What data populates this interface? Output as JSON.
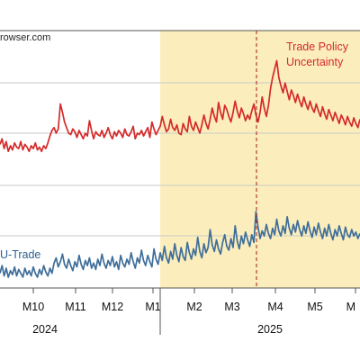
{
  "source_text": "rowser.com",
  "annotations": {
    "tpu_line1": "Trade Policy",
    "tpu_line2": "Uncertainty",
    "eu_trade": "U-Trade"
  },
  "chart_data": {
    "type": "line",
    "title": "",
    "x_tick_labels": [
      "M10",
      "M11",
      "M12",
      "M1",
      "M2",
      "M3",
      "M4",
      "M5",
      "M"
    ],
    "year_labels": [
      "2024",
      "2025"
    ],
    "shaded_region": {
      "from": "2025-01",
      "to": "2025-06",
      "color": "#fbeebc"
    },
    "event_marker": {
      "at": "2025-04-02",
      "style": "dashed",
      "color": "#a01818"
    },
    "grid": true,
    "series": [
      {
        "name": "Trade Policy Uncertainty",
        "color": "#d42a2a",
        "values": [
          0.32,
          0.36,
          0.29,
          0.34,
          0.27,
          0.31,
          0.28,
          0.33,
          0.3,
          0.29,
          0.34,
          0.28,
          0.32,
          0.3,
          0.27,
          0.31,
          0.29,
          0.33,
          0.28,
          0.3,
          0.27,
          0.31,
          0.29,
          0.33,
          0.38,
          0.42,
          0.44,
          0.4,
          0.43,
          0.61,
          0.55,
          0.48,
          0.44,
          0.4,
          0.39,
          0.43,
          0.41,
          0.37,
          0.42,
          0.39,
          0.36,
          0.4,
          0.38,
          0.49,
          0.42,
          0.36,
          0.41,
          0.39,
          0.38,
          0.42,
          0.37,
          0.4,
          0.44,
          0.39,
          0.36,
          0.41,
          0.38,
          0.42,
          0.4,
          0.37,
          0.43,
          0.39,
          0.38,
          0.41,
          0.45,
          0.36,
          0.4,
          0.39,
          0.42,
          0.38,
          0.41,
          0.44,
          0.37,
          0.48,
          0.43,
          0.39,
          0.42,
          0.45,
          0.52,
          0.46,
          0.41,
          0.43,
          0.5,
          0.44,
          0.42,
          0.46,
          0.4,
          0.39,
          0.47,
          0.43,
          0.41,
          0.52,
          0.45,
          0.42,
          0.48,
          0.44,
          0.4,
          0.46,
          0.53,
          0.47,
          0.43,
          0.5,
          0.58,
          0.52,
          0.48,
          0.62,
          0.55,
          0.5,
          0.6,
          0.57,
          0.52,
          0.48,
          0.55,
          0.63,
          0.56,
          0.51,
          0.58,
          0.54,
          0.49,
          0.53,
          0.5,
          0.56,
          0.61,
          0.53,
          0.48,
          0.55,
          0.66,
          0.58,
          0.52,
          0.6,
          0.72,
          0.8,
          0.86,
          0.92,
          0.8,
          0.74,
          0.69,
          0.76,
          0.7,
          0.64,
          0.71,
          0.67,
          0.62,
          0.68,
          0.63,
          0.59,
          0.66,
          0.61,
          0.57,
          0.63,
          0.58,
          0.55,
          0.61,
          0.56,
          0.52,
          0.59,
          0.54,
          0.5,
          0.57,
          0.53,
          0.49,
          0.55,
          0.51,
          0.47,
          0.53,
          0.5,
          0.46,
          0.52,
          0.48,
          0.45,
          0.51,
          0.47,
          0.44,
          0.5
        ]
      },
      {
        "name": "EU-Trade",
        "color": "#3f6e9a",
        "values": [
          0.1,
          0.16,
          0.08,
          0.14,
          0.07,
          0.12,
          0.09,
          0.15,
          0.08,
          0.13,
          0.1,
          0.07,
          0.14,
          0.09,
          0.12,
          0.08,
          0.15,
          0.1,
          0.07,
          0.13,
          0.09,
          0.16,
          0.11,
          0.08,
          0.14,
          0.1,
          0.18,
          0.22,
          0.15,
          0.19,
          0.25,
          0.17,
          0.14,
          0.21,
          0.16,
          0.12,
          0.19,
          0.15,
          0.24,
          0.17,
          0.13,
          0.2,
          0.16,
          0.22,
          0.14,
          0.18,
          0.13,
          0.21,
          0.16,
          0.25,
          0.18,
          0.14,
          0.2,
          0.16,
          0.23,
          0.15,
          0.19,
          0.13,
          0.24,
          0.18,
          0.15,
          0.21,
          0.17,
          0.26,
          0.19,
          0.14,
          0.22,
          0.18,
          0.28,
          0.2,
          0.16,
          0.24,
          0.19,
          0.15,
          0.29,
          0.21,
          0.17,
          0.26,
          0.2,
          0.31,
          0.22,
          0.18,
          0.27,
          0.21,
          0.33,
          0.24,
          0.19,
          0.3,
          0.23,
          0.2,
          0.34,
          0.26,
          0.21,
          0.29,
          0.24,
          0.38,
          0.27,
          0.22,
          0.33,
          0.26,
          0.3,
          0.44,
          0.32,
          0.27,
          0.36,
          0.29,
          0.25,
          0.34,
          0.4,
          0.31,
          0.28,
          0.37,
          0.3,
          0.47,
          0.35,
          0.29,
          0.39,
          0.33,
          0.42,
          0.36,
          0.31,
          0.4,
          0.34,
          0.58,
          0.46,
          0.37,
          0.43,
          0.39,
          0.48,
          0.41,
          0.37,
          0.45,
          0.4,
          0.52,
          0.43,
          0.39,
          0.47,
          0.41,
          0.54,
          0.45,
          0.4,
          0.48,
          0.42,
          0.51,
          0.44,
          0.39,
          0.47,
          0.41,
          0.5,
          0.43,
          0.38,
          0.46,
          0.4,
          0.49,
          0.42,
          0.37,
          0.45,
          0.39,
          0.48,
          0.41,
          0.36,
          0.44,
          0.39,
          0.47,
          0.41,
          0.36,
          0.46,
          0.4,
          0.38,
          0.44,
          0.39,
          0.42,
          0.37,
          0.41
        ]
      }
    ]
  }
}
